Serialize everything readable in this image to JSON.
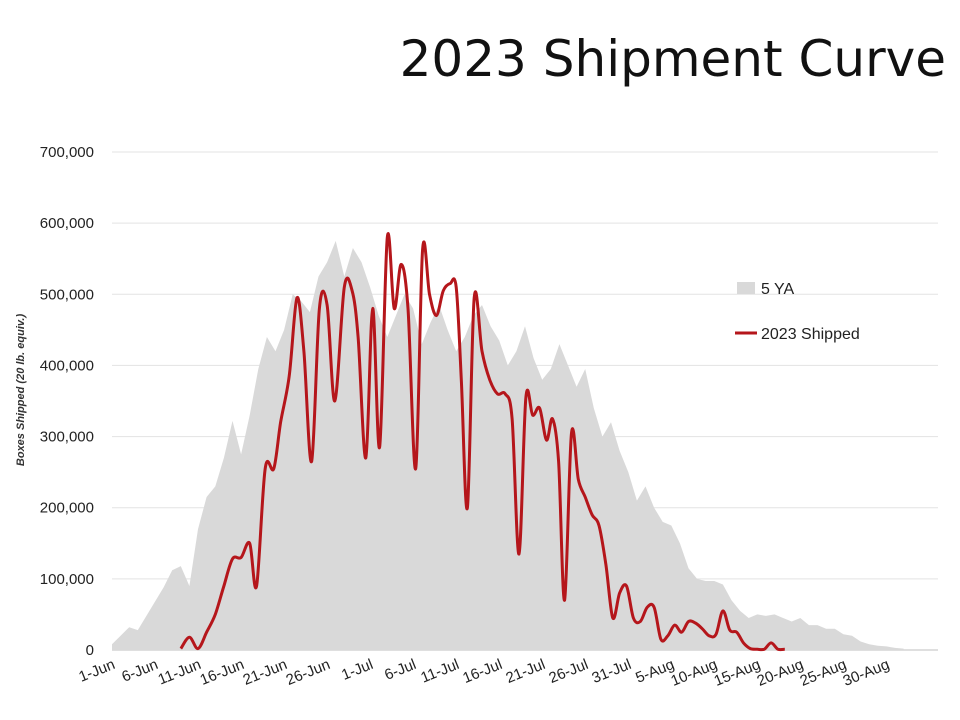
{
  "chart_data": {
    "type": "area",
    "title": "2023 Shipment Curve",
    "ylabel": "Boxes Shipped (20 lb. equiv.)",
    "xlabel": "",
    "ylim": [
      0,
      700000
    ],
    "yticks": [
      0,
      100000,
      200000,
      300000,
      400000,
      500000,
      600000,
      700000
    ],
    "ytick_labels": [
      "0",
      "100,000",
      "200,000",
      "300,000",
      "400,000",
      "500,000",
      "600,000",
      "700,000"
    ],
    "xlim": [
      0,
      96
    ],
    "x_ticks": [
      0,
      5,
      10,
      15,
      20,
      25,
      30,
      35,
      40,
      45,
      50,
      55,
      60,
      65,
      70,
      75,
      80,
      85,
      90
    ],
    "x_tick_labels": [
      "1-Jun",
      "6-Jun",
      "11-Jun",
      "16-Jun",
      "21-Jun",
      "26-Jun",
      "1-Jul",
      "6-Jul",
      "11-Jul",
      "16-Jul",
      "21-Jul",
      "26-Jul",
      "31-Jul",
      "5-Aug",
      "10-Aug",
      "15-Aug",
      "20-Aug",
      "25-Aug",
      "30-Aug"
    ],
    "grid": true,
    "legend_position": "right",
    "series": [
      {
        "name": "5 YA",
        "kind": "area",
        "color": "#d9d9d9",
        "points": [
          [
            0,
            8000
          ],
          [
            1,
            20000
          ],
          [
            2,
            32000
          ],
          [
            3,
            28000
          ],
          [
            4,
            48000
          ],
          [
            5,
            68000
          ],
          [
            6,
            88000
          ],
          [
            7,
            112000
          ],
          [
            8,
            118000
          ],
          [
            9,
            90000
          ],
          [
            10,
            170000
          ],
          [
            11,
            215000
          ],
          [
            12,
            230000
          ],
          [
            13,
            270000
          ],
          [
            14,
            322000
          ],
          [
            15,
            275000
          ],
          [
            16,
            330000
          ],
          [
            17,
            395000
          ],
          [
            18,
            440000
          ],
          [
            19,
            420000
          ],
          [
            20,
            450000
          ],
          [
            21,
            500000
          ],
          [
            22,
            490000
          ],
          [
            23,
            475000
          ],
          [
            24,
            525000
          ],
          [
            25,
            545000
          ],
          [
            26,
            575000
          ],
          [
            27,
            525000
          ],
          [
            28,
            565000
          ],
          [
            29,
            545000
          ],
          [
            30,
            510000
          ],
          [
            31,
            470000
          ],
          [
            32,
            440000
          ],
          [
            33,
            470000
          ],
          [
            34,
            500000
          ],
          [
            35,
            480000
          ],
          [
            36,
            430000
          ],
          [
            37,
            460000
          ],
          [
            38,
            485000
          ],
          [
            39,
            450000
          ],
          [
            40,
            420000
          ],
          [
            41,
            440000
          ],
          [
            42,
            470000
          ],
          [
            43,
            485000
          ],
          [
            44,
            455000
          ],
          [
            45,
            435000
          ],
          [
            46,
            400000
          ],
          [
            47,
            420000
          ],
          [
            48,
            455000
          ],
          [
            49,
            410000
          ],
          [
            50,
            380000
          ],
          [
            51,
            395000
          ],
          [
            52,
            430000
          ],
          [
            53,
            400000
          ],
          [
            54,
            370000
          ],
          [
            55,
            395000
          ],
          [
            56,
            340000
          ],
          [
            57,
            300000
          ],
          [
            58,
            320000
          ],
          [
            59,
            280000
          ],
          [
            60,
            250000
          ],
          [
            61,
            210000
          ],
          [
            62,
            230000
          ],
          [
            63,
            200000
          ],
          [
            64,
            180000
          ],
          [
            65,
            175000
          ],
          [
            66,
            150000
          ],
          [
            67,
            115000
          ],
          [
            68,
            100000
          ],
          [
            69,
            97000
          ],
          [
            70,
            97000
          ],
          [
            71,
            92000
          ],
          [
            72,
            70000
          ],
          [
            73,
            55000
          ],
          [
            74,
            45000
          ],
          [
            75,
            50000
          ],
          [
            76,
            48000
          ],
          [
            77,
            50000
          ],
          [
            78,
            45000
          ],
          [
            79,
            40000
          ],
          [
            80,
            45000
          ],
          [
            81,
            35000
          ],
          [
            82,
            35000
          ],
          [
            83,
            30000
          ],
          [
            84,
            30000
          ],
          [
            85,
            22000
          ],
          [
            86,
            20000
          ],
          [
            87,
            12000
          ],
          [
            88,
            8000
          ],
          [
            89,
            6000
          ],
          [
            90,
            5000
          ],
          [
            91,
            3000
          ],
          [
            92,
            2000
          ]
        ]
      },
      {
        "name": "2023 Shipped",
        "kind": "line",
        "color": "#b5161b",
        "points": [
          [
            8,
            2000
          ],
          [
            9,
            18000
          ],
          [
            10,
            2000
          ],
          [
            11,
            25000
          ],
          [
            12,
            50000
          ],
          [
            13,
            90000
          ],
          [
            14,
            128000
          ],
          [
            15,
            130000
          ],
          [
            16,
            150000
          ],
          [
            16.8,
            90000
          ],
          [
            17.8,
            255000
          ],
          [
            18.8,
            255000
          ],
          [
            19.6,
            320000
          ],
          [
            20.6,
            385000
          ],
          [
            21.5,
            495000
          ],
          [
            22.3,
            420000
          ],
          [
            23.2,
            265000
          ],
          [
            24.1,
            480000
          ],
          [
            25,
            485000
          ],
          [
            25.9,
            350000
          ],
          [
            27,
            510000
          ],
          [
            27.9,
            505000
          ],
          [
            28.6,
            440000
          ],
          [
            29.5,
            270000
          ],
          [
            30.3,
            480000
          ],
          [
            31.1,
            285000
          ],
          [
            32,
            580000
          ],
          [
            32.8,
            480000
          ],
          [
            33.6,
            542000
          ],
          [
            34.4,
            480000
          ],
          [
            35.3,
            255000
          ],
          [
            36.1,
            563000
          ],
          [
            36.9,
            500000
          ],
          [
            37.7,
            470000
          ],
          [
            38.5,
            505000
          ],
          [
            39.3,
            515000
          ],
          [
            40,
            510000
          ],
          [
            40.6,
            380000
          ],
          [
            41.3,
            200000
          ],
          [
            42.1,
            495000
          ],
          [
            43,
            420000
          ],
          [
            43.9,
            380000
          ],
          [
            44.8,
            360000
          ],
          [
            45.7,
            360000
          ],
          [
            46.5,
            325000
          ],
          [
            47.3,
            135000
          ],
          [
            48.1,
            355000
          ],
          [
            48.9,
            330000
          ],
          [
            49.7,
            340000
          ],
          [
            50.5,
            295000
          ],
          [
            51.2,
            325000
          ],
          [
            51.9,
            265000
          ],
          [
            52.6,
            70000
          ],
          [
            53.4,
            305000
          ],
          [
            54.2,
            240000
          ],
          [
            55,
            215000
          ],
          [
            55.8,
            190000
          ],
          [
            56.6,
            175000
          ],
          [
            57.4,
            120000
          ],
          [
            58.2,
            45000
          ],
          [
            59,
            80000
          ],
          [
            59.8,
            90000
          ],
          [
            60.6,
            45000
          ],
          [
            61.4,
            40000
          ],
          [
            62.2,
            60000
          ],
          [
            63,
            60000
          ],
          [
            63.8,
            15000
          ],
          [
            64.6,
            20000
          ],
          [
            65.4,
            35000
          ],
          [
            66.2,
            25000
          ],
          [
            67,
            40000
          ],
          [
            67.8,
            38000
          ],
          [
            68.6,
            30000
          ],
          [
            69.4,
            20000
          ],
          [
            70.2,
            22000
          ],
          [
            71,
            55000
          ],
          [
            71.8,
            28000
          ],
          [
            72.6,
            25000
          ],
          [
            73.4,
            10000
          ],
          [
            74.2,
            2000
          ],
          [
            75,
            1000
          ],
          [
            75.8,
            1000
          ],
          [
            76.6,
            10000
          ],
          [
            77.4,
            1000
          ],
          [
            78.2,
            1000
          ]
        ]
      }
    ]
  }
}
